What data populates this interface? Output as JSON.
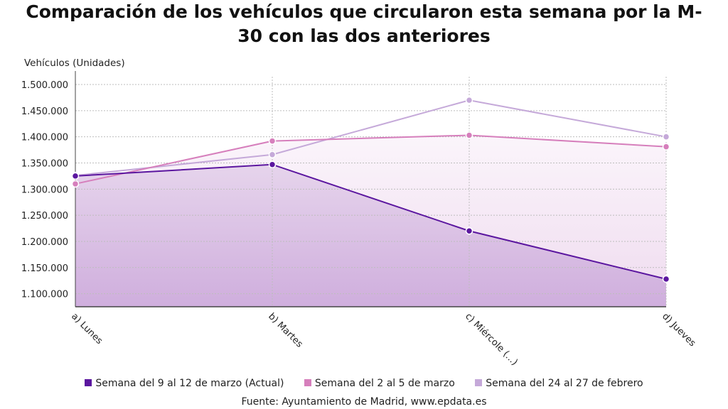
{
  "title_line1": "Comparación de los vehículos que circularon esta semana por la M-",
  "title_line2": "30 con las dos anteriores",
  "source": "Fuente: Ayuntamiento de Madrid, www.epdata.es",
  "chart_data": {
    "type": "area",
    "ylabel": "Vehículos (Unidades)",
    "categories": [
      "a) Lunes",
      "b) Martes",
      "c) Miércole (...)",
      "d) Jueves"
    ],
    "yticks": [
      "1.100.000",
      "1.150.000",
      "1.200.000",
      "1.250.000",
      "1.300.000",
      "1.350.000",
      "1.400.000",
      "1.450.000",
      "1.500.000"
    ],
    "ylim": [
      1075000,
      1515000
    ],
    "grid": true,
    "legend": "bottom",
    "series": [
      {
        "name": "Semana del 9 al 12 de marzo (Actual)",
        "color": "#5b169f",
        "values": [
          1325000,
          1347000,
          1220000,
          1128000
        ]
      },
      {
        "name": "Semana del 2 al 5 de marzo",
        "color": "#d67fbc",
        "values": [
          1310000,
          1392000,
          1403000,
          1381000
        ]
      },
      {
        "name": "Semana del 24 al 27 de febrero",
        "color": "#c5a9d9",
        "values": [
          1326000,
          1366000,
          1470000,
          1400000
        ]
      }
    ]
  }
}
